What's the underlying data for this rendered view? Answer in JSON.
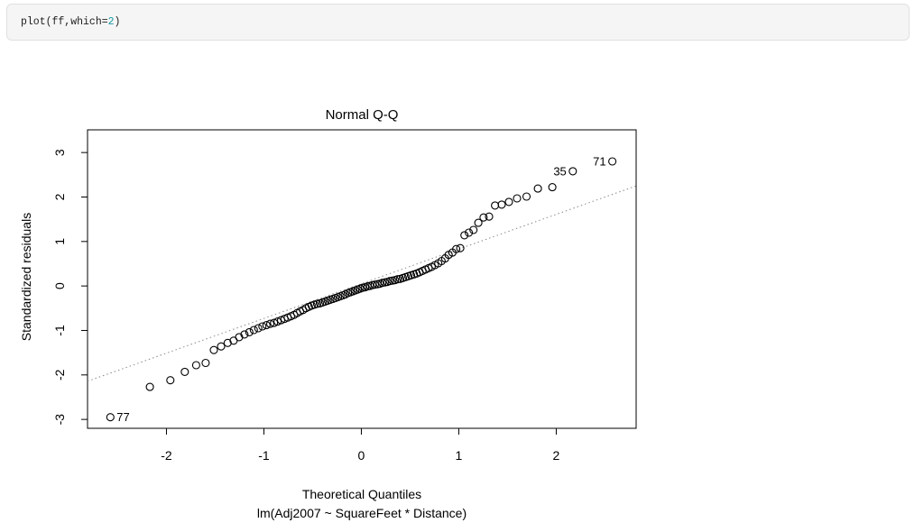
{
  "code_cell": {
    "tokens": [
      {
        "text": "plot(ff,which=",
        "type": "code"
      },
      {
        "text": "2",
        "type": "number"
      },
      {
        "text": ")",
        "type": "code"
      }
    ],
    "colors": {
      "code_text": "#1f1f1f",
      "number": "#169aa4",
      "background": "#f5f5f5",
      "border": "#e0e0e0"
    }
  },
  "chart_data": {
    "type": "scatter",
    "title": "Normal Q-Q",
    "xlabel": "Theoretical Quantiles",
    "xlabel2": "lm(Adj2007 ~ SquareFeet * Distance)",
    "ylabel": "Standardized residuals",
    "x_ticks": [
      -2,
      -1,
      0,
      1,
      2
    ],
    "y_ticks": [
      -3,
      -2,
      -1,
      0,
      1,
      2,
      3
    ],
    "xlim": [
      -2.81,
      2.82
    ],
    "ylim": [
      -3.2,
      3.51
    ],
    "grid": false,
    "legend": null,
    "n_points": 100,
    "point_style": {
      "shape": "open-circle",
      "stroke": "#000000",
      "radius_px": 4
    },
    "reference_line": {
      "slope": 0.78,
      "intercept": 0.05,
      "style": "dotted",
      "color": "#8a8a8a"
    },
    "points": {
      "theoretical": [
        -2.576,
        -2.17,
        -1.96,
        -1.812,
        -1.695,
        -1.598,
        -1.514,
        -1.44,
        -1.372,
        -1.311,
        -1.254,
        -1.2,
        -1.15,
        -1.103,
        -1.058,
        -1.015,
        -0.974,
        -0.935,
        -0.896,
        -0.86,
        -0.824,
        -0.789,
        -0.755,
        -0.722,
        -0.69,
        -0.659,
        -0.628,
        -0.598,
        -0.568,
        -0.539,
        -0.51,
        -0.482,
        -0.454,
        -0.426,
        -0.399,
        -0.372,
        -0.345,
        -0.319,
        -0.292,
        -0.266,
        -0.24,
        -0.215,
        -0.189,
        -0.164,
        -0.138,
        -0.113,
        -0.088,
        -0.063,
        -0.038,
        -0.013,
        0.013,
        0.038,
        0.063,
        0.088,
        0.113,
        0.138,
        0.164,
        0.189,
        0.215,
        0.24,
        0.266,
        0.292,
        0.319,
        0.345,
        0.372,
        0.399,
        0.426,
        0.454,
        0.482,
        0.51,
        0.539,
        0.568,
        0.598,
        0.628,
        0.659,
        0.69,
        0.722,
        0.755,
        0.789,
        0.824,
        0.86,
        0.896,
        0.935,
        0.974,
        1.015,
        1.058,
        1.103,
        1.15,
        1.2,
        1.254,
        1.311,
        1.372,
        1.44,
        1.514,
        1.598,
        1.695,
        1.812,
        1.96,
        2.17,
        2.576
      ],
      "sample": [
        -2.95,
        -2.27,
        -2.12,
        -1.93,
        -1.78,
        -1.73,
        -1.44,
        -1.36,
        -1.28,
        -1.23,
        -1.15,
        -1.09,
        -1.04,
        -0.99,
        -0.95,
        -0.91,
        -0.88,
        -0.85,
        -0.83,
        -0.8,
        -0.77,
        -0.74,
        -0.71,
        -0.68,
        -0.65,
        -0.61,
        -0.57,
        -0.54,
        -0.5,
        -0.47,
        -0.44,
        -0.42,
        -0.4,
        -0.39,
        -0.37,
        -0.35,
        -0.33,
        -0.31,
        -0.29,
        -0.27,
        -0.25,
        -0.23,
        -0.21,
        -0.19,
        -0.16,
        -0.14,
        -0.12,
        -0.1,
        -0.08,
        -0.06,
        -0.04,
        -0.03,
        -0.01,
        0.0,
        0.02,
        0.03,
        0.04,
        0.05,
        0.07,
        0.08,
        0.09,
        0.11,
        0.12,
        0.13,
        0.15,
        0.16,
        0.18,
        0.2,
        0.22,
        0.24,
        0.26,
        0.28,
        0.31,
        0.34,
        0.37,
        0.4,
        0.43,
        0.47,
        0.51,
        0.56,
        0.62,
        0.7,
        0.75,
        0.83,
        0.85,
        1.14,
        1.2,
        1.26,
        1.42,
        1.54,
        1.56,
        1.81,
        1.83,
        1.89,
        1.97,
        2.01,
        2.19,
        2.22,
        2.58,
        2.8
      ]
    },
    "labeled_points": [
      {
        "label": "77",
        "index": 0,
        "side": "right"
      },
      {
        "label": "35",
        "index": 98,
        "side": "left"
      },
      {
        "label": "71",
        "index": 99,
        "side": "left"
      }
    ]
  }
}
